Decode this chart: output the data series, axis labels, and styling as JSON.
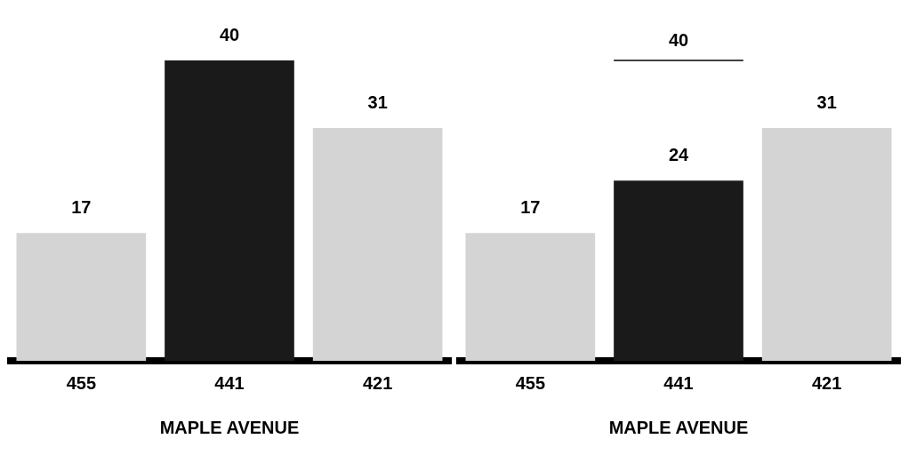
{
  "chart_data": [
    {
      "type": "bar",
      "categories": [
        "455",
        "441",
        "421"
      ],
      "values": [
        17,
        40,
        31
      ],
      "colors": [
        "#d4d4d4",
        "#1a1a1a",
        "#d4d4d4"
      ],
      "xlabel": "MAPLE AVENUE",
      "data_labels": true,
      "grid": false,
      "legend": false,
      "tick_labels": "x"
    },
    {
      "type": "bar",
      "categories": [
        "455",
        "441",
        "421"
      ],
      "values": [
        17,
        24,
        31
      ],
      "colors": [
        "#d4d4d4",
        "#1a1a1a",
        "#d4d4d4"
      ],
      "xlabel": "MAPLE AVENUE",
      "data_labels": true,
      "grid": false,
      "legend": false,
      "tick_labels": "x",
      "ref_lines": [
        {
          "axis": "y",
          "value": 40,
          "color": "#000000"
        }
      ],
      "annotations": [
        {
          "text": "40",
          "x": "441",
          "y": 40
        }
      ]
    }
  ]
}
